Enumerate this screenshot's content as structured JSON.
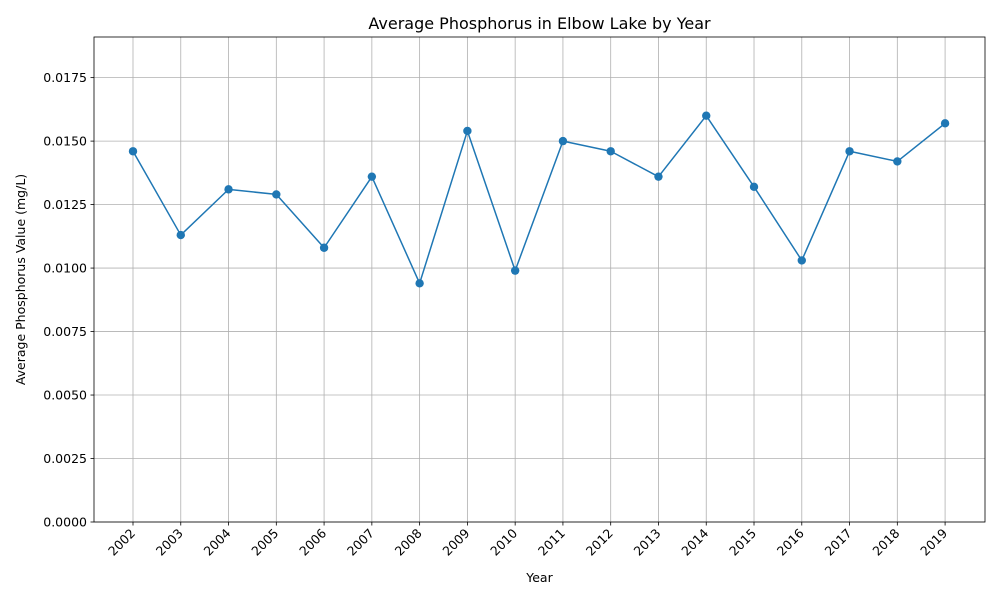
{
  "chart_data": {
    "type": "line",
    "title": "Average Phosphorus in Elbow Lake by Year",
    "xlabel": "Year",
    "ylabel": "Average Phosphorus Value (mg/L)",
    "categories": [
      "2002",
      "2003",
      "2004",
      "2005",
      "2006",
      "2007",
      "2008",
      "2009",
      "2010",
      "2011",
      "2012",
      "2013",
      "2014",
      "2015",
      "2016",
      "2017",
      "2018",
      "2019"
    ],
    "series": [
      {
        "values": [
          0.0146,
          0.0113,
          0.0131,
          0.0129,
          0.0108,
          0.0136,
          0.0094,
          0.0154,
          0.0099,
          0.015,
          0.0146,
          0.0136,
          0.016,
          0.0132,
          0.0103,
          0.0146,
          0.0142,
          0.0157
        ],
        "color": "#1f77b4",
        "marker": "circle"
      }
    ],
    "ylim": [
      0,
      0.0191
    ],
    "yticks": [
      "0.0000",
      "0.0025",
      "0.0050",
      "0.0075",
      "0.0100",
      "0.0125",
      "0.0150",
      "0.0175"
    ],
    "grid": true,
    "x_tick_rotation": 45
  }
}
